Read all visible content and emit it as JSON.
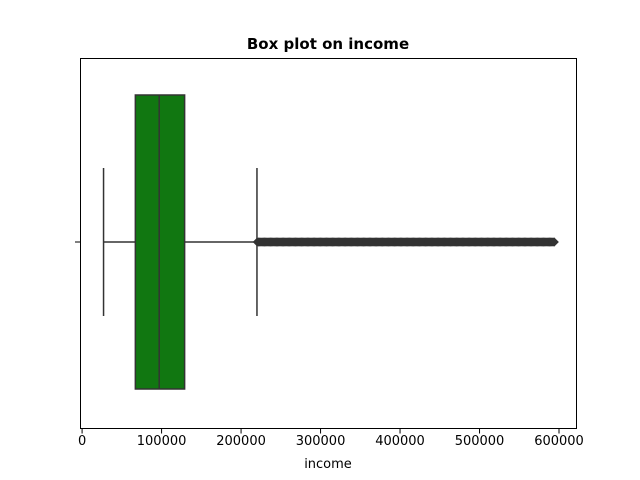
{
  "chart_data": {
    "type": "box",
    "title": "Box plot on income",
    "xlabel": "income",
    "ylabel": "",
    "xlim": [
      -2000,
      622000
    ],
    "xticks": [
      0,
      100000,
      200000,
      300000,
      400000,
      500000,
      600000
    ],
    "xtick_labels": [
      "0",
      "100000",
      "200000",
      "300000",
      "400000",
      "500000",
      "600000"
    ],
    "orientation": "horizontal",
    "grid": false,
    "box": {
      "whisker_low": 27000,
      "q1": 67000,
      "median": 97000,
      "q3": 129000,
      "whisker_high": 220000,
      "fill_color": "#117711",
      "line_color": "#333333"
    },
    "outliers": {
      "min": 220500,
      "max": 594000,
      "note_dense_range": [
        220500,
        594000
      ]
    }
  }
}
